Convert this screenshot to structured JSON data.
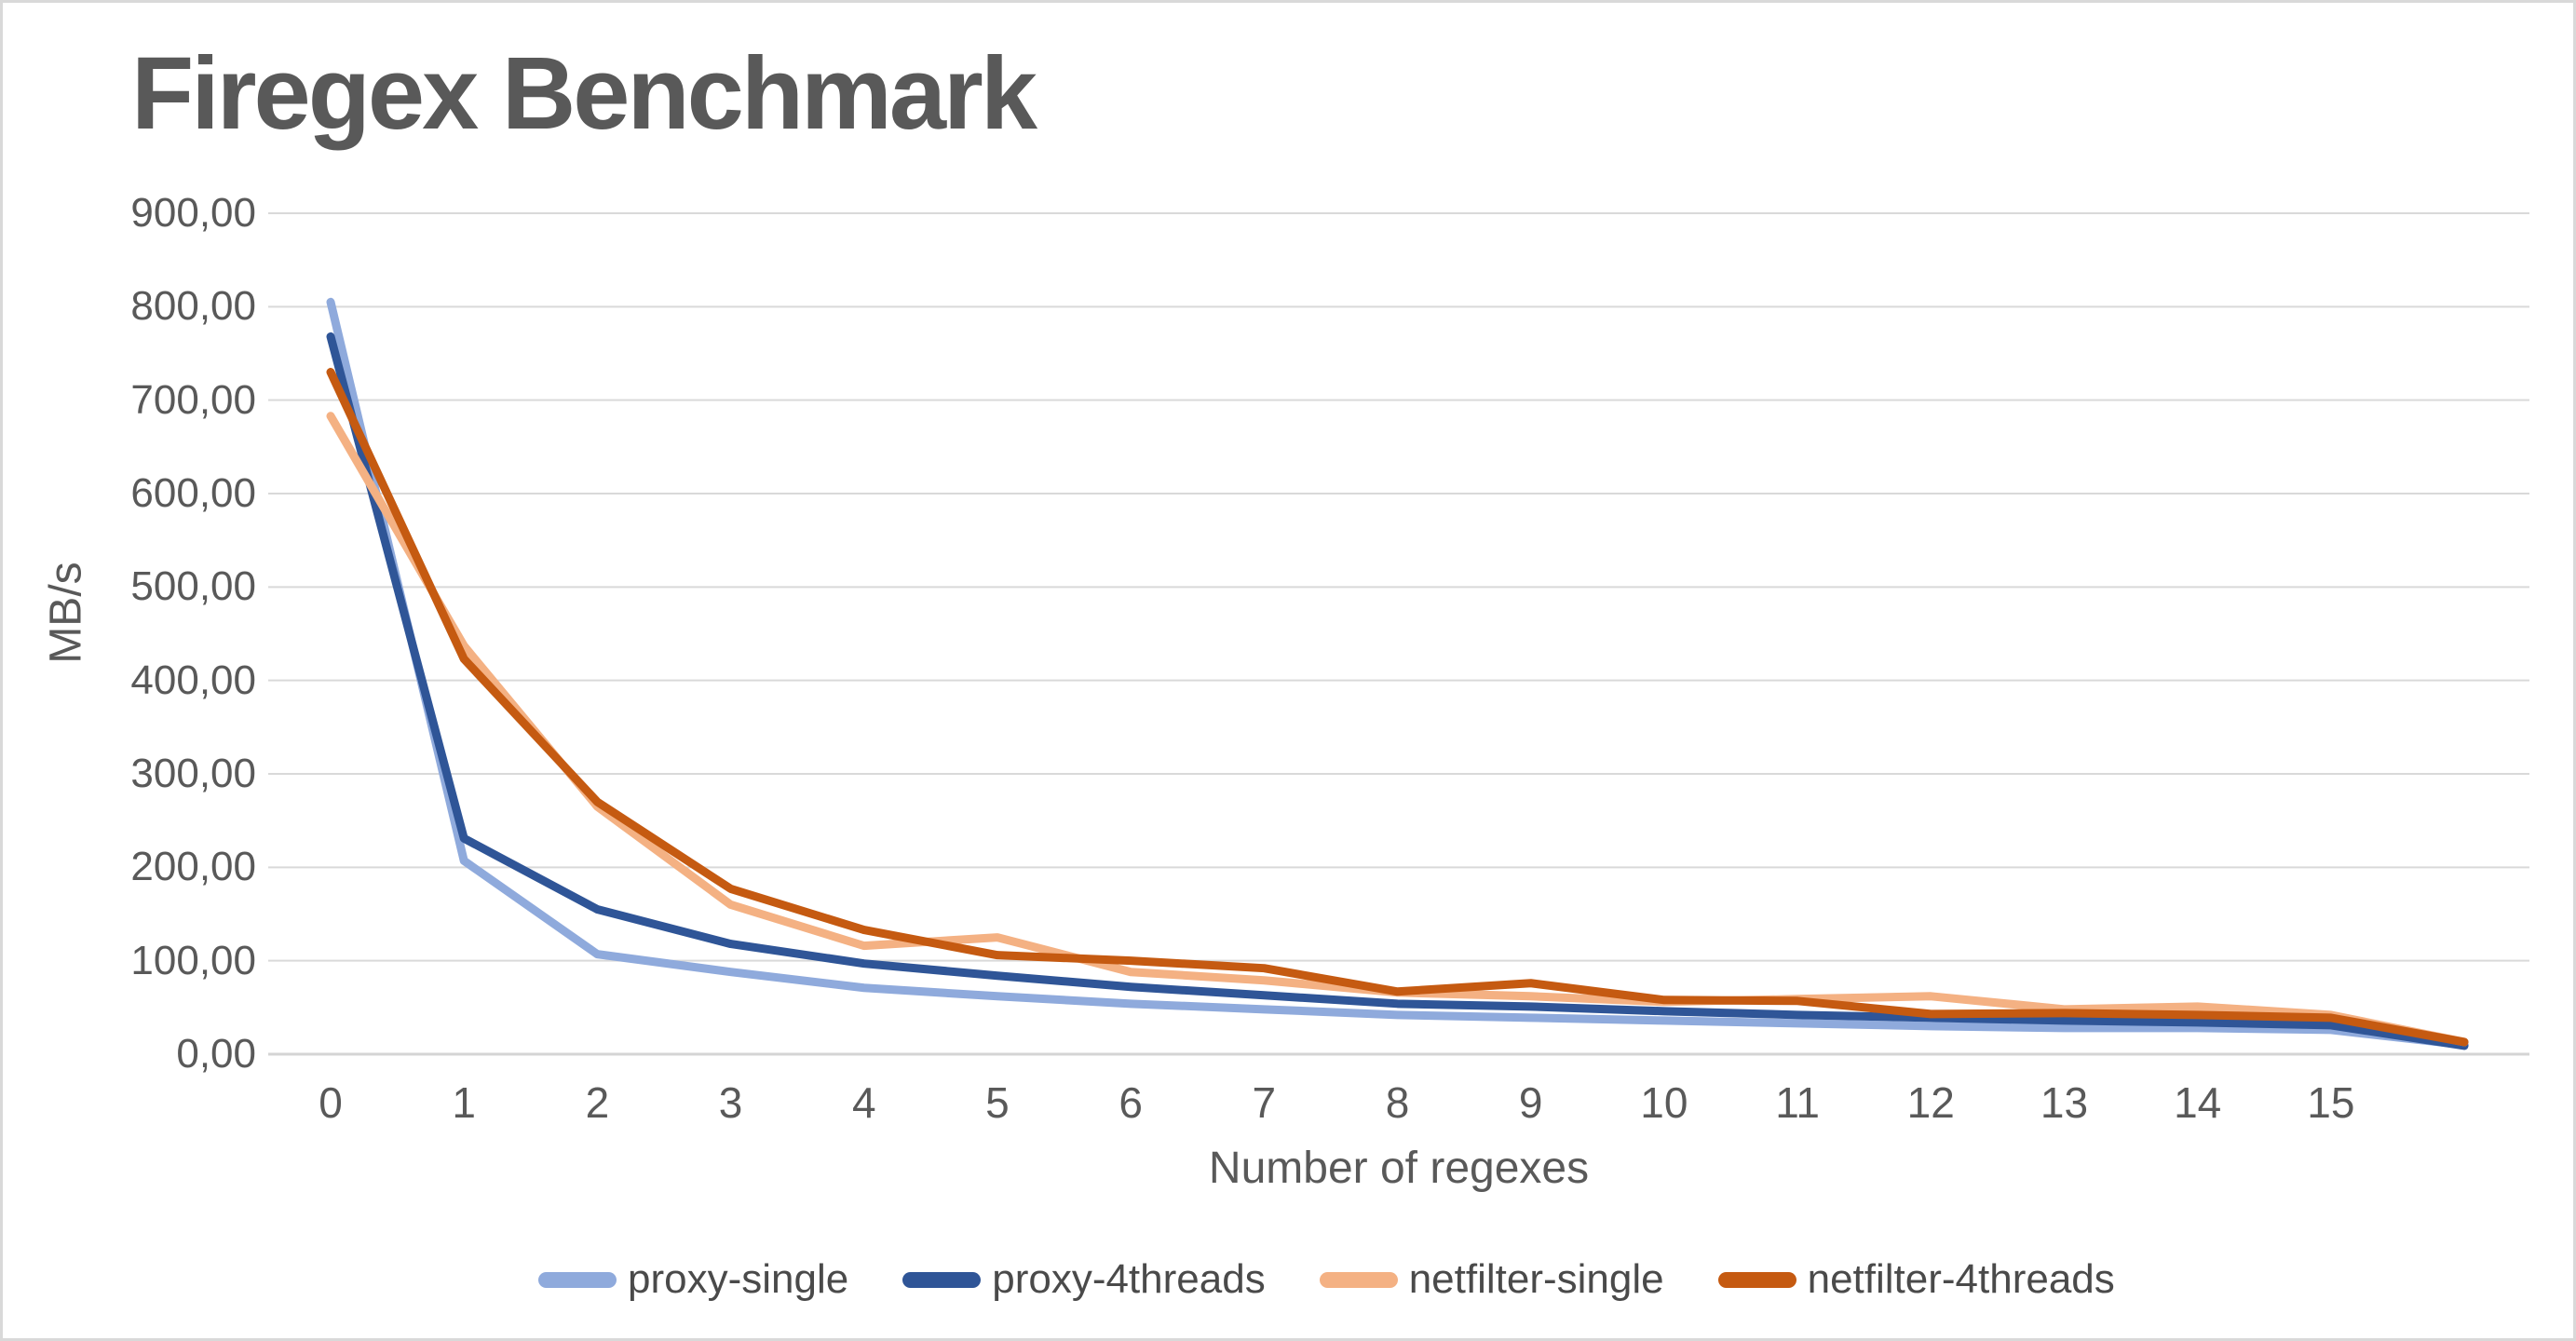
{
  "title": "Firegex Benchmark",
  "colors": {
    "background": "#FFFFFF",
    "border": "#D9D9D9",
    "grid": "#D9D9D9",
    "axis_line": "#D4D4D4",
    "text": "#595959",
    "legend_text": "#4a4a4a"
  },
  "chart_data": {
    "type": "line",
    "title": "Firegex Benchmark",
    "xlabel": "Number of regexes",
    "ylabel": "MB/s",
    "ylim": [
      0,
      900
    ],
    "ytick_step": 100,
    "ytick_labels": [
      "0,00",
      "100,00",
      "200,00",
      "300,00",
      "400,00",
      "500,00",
      "600,00",
      "700,00",
      "800,00",
      "900,00"
    ],
    "categories": [
      "0",
      "1",
      "2",
      "3",
      "4",
      "5",
      "6",
      "7",
      "8",
      "9",
      "10",
      "11",
      "12",
      "13",
      "14",
      "15",
      ""
    ],
    "grid": "horizontal",
    "legend_position": "bottom",
    "series": [
      {
        "name": "proxy-single",
        "color": "#8FAADC",
        "values": [
          805,
          207,
          107,
          88,
          71,
          62,
          54,
          48,
          42,
          39,
          36,
          33,
          30,
          28,
          28,
          26,
          10
        ]
      },
      {
        "name": "proxy-4threads",
        "color": "#2F5597",
        "values": [
          768,
          231,
          155,
          118,
          97,
          84,
          72,
          63,
          54,
          51,
          46,
          42,
          39,
          36,
          34,
          31,
          9
        ]
      },
      {
        "name": "netfilter-single",
        "color": "#F4B183",
        "values": [
          683,
          437,
          265,
          160,
          116,
          125,
          88,
          79,
          66,
          62,
          56,
          59,
          62,
          48,
          51,
          42,
          13
        ]
      },
      {
        "name": "netfilter-4threads",
        "color": "#C55A11",
        "values": [
          730,
          423,
          270,
          177,
          133,
          106,
          100,
          92,
          67,
          76,
          58,
          57,
          43,
          44,
          42,
          39,
          13
        ]
      }
    ]
  }
}
